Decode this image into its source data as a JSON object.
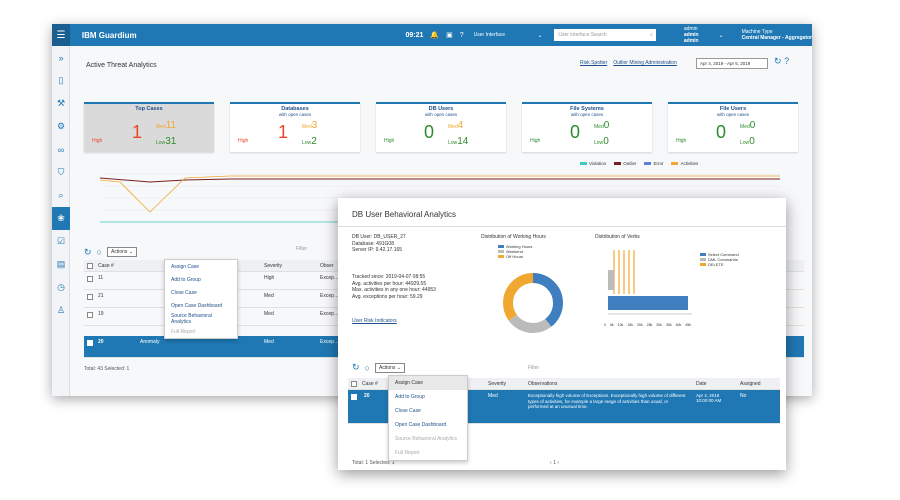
{
  "app": {
    "title": "IBM Guardium",
    "time": "09:21",
    "ui_selector": "User Interface",
    "search_placeholder": "User interface Search",
    "user_role": "admin",
    "user_name": "admin admin",
    "machine_label": "Machine Type",
    "machine_value": "Central Manager - Aggregator"
  },
  "page": {
    "title": "Active Threat Analytics",
    "link_risk_spotter": "Risk Spotter",
    "link_outlier": "Outlier Mining Administration",
    "date_range": "Apr 4, 2019 - Apr 5, 2019"
  },
  "tiles": [
    {
      "name": "Top Cases",
      "sub": "",
      "big": "1",
      "high": "High",
      "med_label": "Med",
      "med": "11",
      "low_label": "Low",
      "low": "31"
    },
    {
      "name": "Databases",
      "sub": "with open cases",
      "big": "1",
      "high": "High",
      "med_label": "Med",
      "med": "3",
      "low_label": "Low",
      "low": "2"
    },
    {
      "name": "DB Users",
      "sub": "with open cases",
      "big": "0",
      "high": "High",
      "med_label": "Med",
      "med": "4",
      "low_label": "Low",
      "low": "14"
    },
    {
      "name": "File Systems",
      "sub": "with open cases",
      "big": "0",
      "high": "High",
      "med_label": "Med",
      "med": "0",
      "low_label": "Low",
      "low": "0"
    },
    {
      "name": "File Users",
      "sub": "with open cases",
      "big": "0",
      "high": "High",
      "med_label": "Med",
      "med": "0",
      "low_label": "Low",
      "low": "0"
    }
  ],
  "legend": [
    {
      "label": "Violation",
      "color": "#3cc9c0"
    },
    {
      "label": "Outlier",
      "color": "#7a1e1e"
    },
    {
      "label": "Error",
      "color": "#5a7fd6"
    },
    {
      "label": "Activities",
      "color": "#f0a830"
    }
  ],
  "colors": {
    "accent": "#1f78b4",
    "high": "#e8472b",
    "med": "#f0a830",
    "low": "#2e8b2e"
  },
  "grid": {
    "actions_label": "Actions",
    "filter_placeholder": "Filter",
    "headers": {
      "case": "Case #",
      "severity": "Severity",
      "obs": "Obser"
    },
    "rows": [
      {
        "case": "11",
        "severity": "High",
        "obs": "Excep…"
      },
      {
        "case": "21",
        "severity": "Med",
        "obs": "Excep…"
      },
      {
        "case": "19",
        "severity": "Med",
        "obs": "Excep…"
      },
      {
        "case": "20",
        "type": "Anomaly",
        "severity": "Med",
        "obs": "Excep…"
      }
    ],
    "footer": "Total: 43 Selected: 1"
  },
  "menu": {
    "items": [
      "Assign Case",
      "Add to Group",
      "Close Case",
      "Open Case Dashboard",
      "Source Behavioral Analytics",
      "Full Report"
    ]
  },
  "popup": {
    "title": "DB User Behavioral Analytics",
    "db_user": "DB User: DB_USER_27",
    "database": "Database: 491G08",
    "server_ip": "Server IP: 9.42.17.165",
    "tracked": "Tracked since: 2019-04-07 08:55",
    "avg_hour": "Avg. activities per hour: 44929.55",
    "max_hour": "Max. activities in any one hour: 44953",
    "avg_exc": "Avg. exceptions per hour: 59.29",
    "risk_link": "User Risk Indicators",
    "working_hours_title": "Distribution of Working Hours",
    "wh_legend": [
      "Working Hours",
      "Weekend",
      "Off Hours"
    ],
    "verbs_title": "Distribution of Verbs",
    "verbs_legend": [
      "Select Command",
      "DML Commands",
      "DELETE"
    ],
    "verbs_ticks": [
      "0",
      "5k",
      "10k",
      "15k",
      "20k",
      "25k",
      "30k",
      "35k",
      "40k",
      "45k"
    ],
    "grid_headers": {
      "case": "Case #",
      "type": "Type",
      "severity": "Severity",
      "obs": "Observations",
      "date": "Date",
      "assigned": "Assigned"
    },
    "row": {
      "case": "20",
      "type": "Anomaly",
      "severity": "Med",
      "obs": "Exceptionally high volume of Exceptions. Exceptionally high volume of different types of activities, for example a large range of activities than usual, or performed at an unusual time.",
      "date": "Apr 4, 2019 10:00:00 AM",
      "assigned": "No"
    },
    "footer": "Total: 1 Selected: 1",
    "pager": "1"
  }
}
